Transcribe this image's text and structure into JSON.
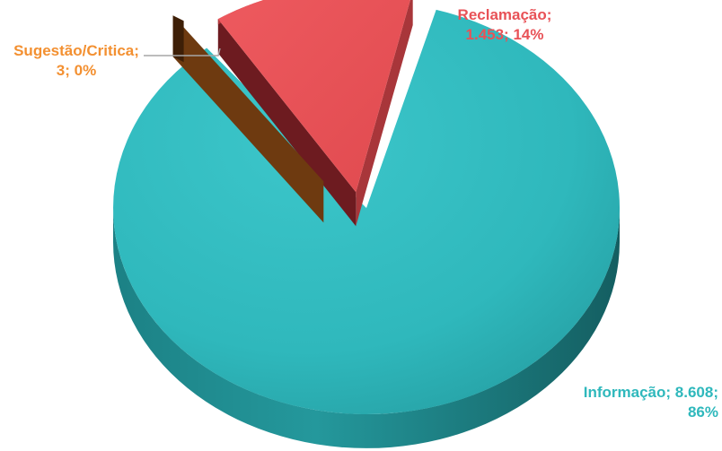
{
  "chart_data": {
    "type": "pie",
    "style": "3d-exploded",
    "title": "",
    "slices": [
      {
        "name": "Informação",
        "value": 8608,
        "value_label": "8.608",
        "percent": 86,
        "percent_label": "86%",
        "color": "#2fb8bc",
        "label_color": "#2fb8bc"
      },
      {
        "name": "Reclamação",
        "value": 1453,
        "value_label": "1.453",
        "percent": 14,
        "percent_label": "14%",
        "color": "#e85257",
        "label_color": "#e85257"
      },
      {
        "name": "Sugestão/Critica",
        "value": 3,
        "value_label": "3",
        "percent": 0,
        "percent_label": "0%",
        "color": "#6e3a10",
        "label_color": "#f39031"
      }
    ],
    "labels": {
      "informacao_line1": "Informação; 8.608;",
      "informacao_line2": "86%",
      "reclamacao_line1": "Reclamação;",
      "reclamacao_line2": "1.453; 14%",
      "sugestao_line1": "Sugestão/Critica;",
      "sugestao_line2": "3; 0%"
    },
    "legend": "none",
    "grid": false
  }
}
